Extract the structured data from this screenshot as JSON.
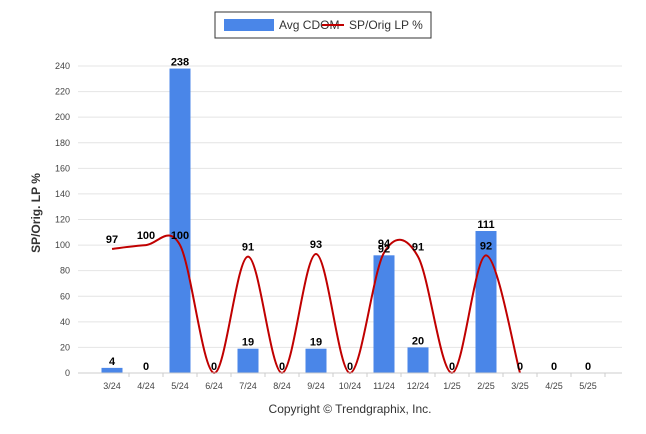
{
  "chart_data": {
    "type": "bar",
    "categories": [
      "3/24",
      "4/24",
      "5/24",
      "6/24",
      "7/24",
      "8/24",
      "9/24",
      "10/24",
      "11/24",
      "12/24",
      "1/25",
      "2/25",
      "3/25",
      "4/25",
      "5/25"
    ],
    "series": [
      {
        "name": "Avg CDOM",
        "type": "bar",
        "color": "#4a86e8",
        "values": [
          4,
          0,
          238,
          0,
          19,
          0,
          19,
          0,
          92,
          20,
          0,
          111,
          0,
          0,
          0
        ]
      },
      {
        "name": "SP/Orig LP %",
        "type": "line",
        "color": "#c00000",
        "values": [
          97,
          100,
          100,
          null,
          91,
          null,
          93,
          null,
          94,
          91,
          null,
          92,
          null,
          null,
          null
        ]
      }
    ],
    "ylabel": "SP/Orig. LP %",
    "ylim": [
      0,
      240
    ],
    "yticks": [
      0,
      20,
      40,
      60,
      80,
      100,
      120,
      140,
      160,
      180,
      200,
      220,
      240
    ],
    "grid": true,
    "legend": "top-center"
  },
  "footer": {
    "copyright": "Copyright © Trendgraphix, Inc."
  }
}
